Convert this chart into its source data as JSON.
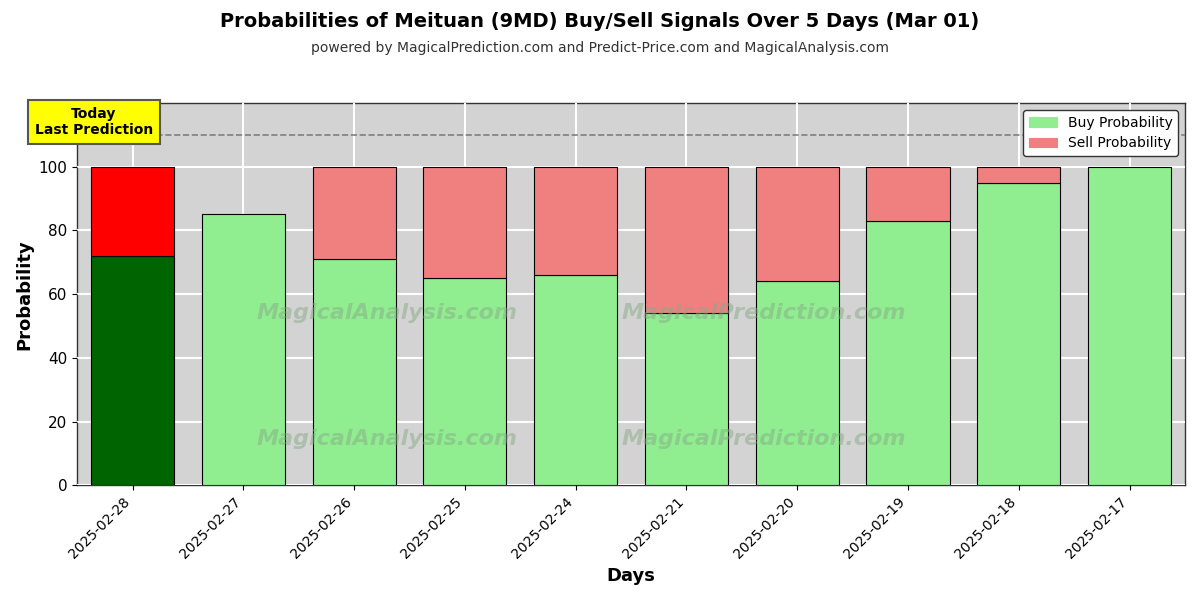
{
  "title": "Probabilities of Meituan (9MD) Buy/Sell Signals Over 5 Days (Mar 01)",
  "subtitle": "powered by MagicalPrediction.com and Predict-Price.com and MagicalAnalysis.com",
  "xlabel": "Days",
  "ylabel": "Probability",
  "dates": [
    "2025-02-28",
    "2025-02-27",
    "2025-02-26",
    "2025-02-25",
    "2025-02-24",
    "2025-02-21",
    "2025-02-20",
    "2025-02-19",
    "2025-02-18",
    "2025-02-17"
  ],
  "buy_values": [
    72,
    85,
    71,
    65,
    66,
    54,
    64,
    83,
    95,
    100
  ],
  "sell_values": [
    28,
    0,
    29,
    35,
    34,
    46,
    36,
    17,
    5,
    0
  ],
  "today_buy_color": "#006400",
  "today_sell_color": "#FF0000",
  "buy_color": "#90EE90",
  "sell_color": "#F08080",
  "today_label": "Today\nLast Prediction",
  "today_label_bg": "#FFFF00",
  "legend_buy": "Buy Probability",
  "legend_sell": "Sell Probability",
  "ylim_max": 120,
  "yticks": [
    0,
    20,
    40,
    60,
    80,
    100
  ],
  "dashed_line_y": 110,
  "bar_edge_color": "#000000",
  "background_color": "#FFFFFF",
  "grid_color": "#FFFFFF",
  "plot_bg_color": "#D3D3D3"
}
